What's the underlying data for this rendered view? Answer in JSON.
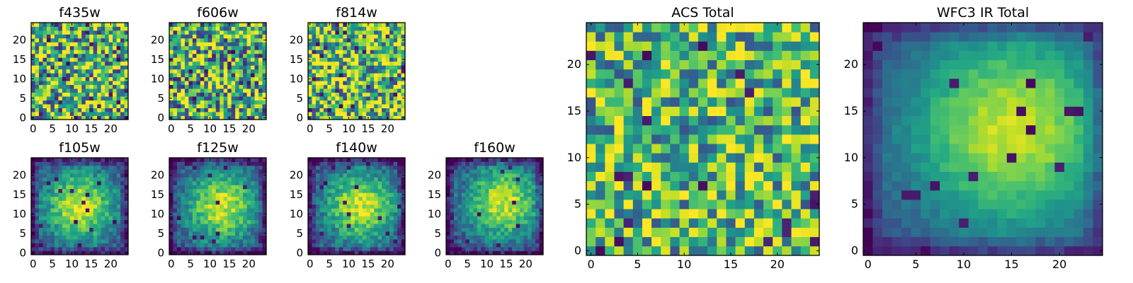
{
  "chart_data": [
    {
      "type": "heatmap",
      "id": "f435w",
      "title": "f435w",
      "grid": [
        25,
        25
      ],
      "pattern": "noise",
      "seed": 11,
      "base": 0.62,
      "contrast": 0.95,
      "xticks": [
        0,
        5,
        10,
        15,
        20
      ],
      "yticks": [
        0,
        5,
        10,
        15,
        20
      ],
      "colormap": "viridis"
    },
    {
      "type": "heatmap",
      "id": "f606w",
      "title": "f606w",
      "grid": [
        25,
        25
      ],
      "pattern": "noise",
      "seed": 23,
      "base": 0.6,
      "contrast": 0.95,
      "xticks": [
        0,
        5,
        10,
        15,
        20
      ],
      "yticks": [
        0,
        5,
        10,
        15,
        20
      ],
      "colormap": "viridis"
    },
    {
      "type": "heatmap",
      "id": "f814w",
      "title": "f814w",
      "grid": [
        25,
        25
      ],
      "pattern": "noise",
      "seed": 37,
      "base": 0.68,
      "contrast": 0.95,
      "xticks": [
        0,
        5,
        10,
        15,
        20
      ],
      "yticks": [
        0,
        5,
        10,
        15,
        20
      ],
      "colormap": "viridis"
    },
    {
      "type": "heatmap",
      "id": "f105w",
      "title": "f105w",
      "grid": [
        25,
        25
      ],
      "pattern": "blob",
      "seed": 41,
      "center": [
        12,
        12
      ],
      "width": 7,
      "xticks": [
        0,
        5,
        10,
        15,
        20
      ],
      "yticks": [
        0,
        5,
        10,
        15,
        20
      ],
      "colormap": "viridis"
    },
    {
      "type": "heatmap",
      "id": "f125w",
      "title": "f125w",
      "grid": [
        25,
        25
      ],
      "pattern": "blob",
      "seed": 53,
      "center": [
        13,
        12
      ],
      "width": 7,
      "xticks": [
        0,
        5,
        10,
        15,
        20
      ],
      "yticks": [
        0,
        5,
        10,
        15,
        20
      ],
      "colormap": "viridis"
    },
    {
      "type": "heatmap",
      "id": "f140w",
      "title": "f140w",
      "grid": [
        25,
        25
      ],
      "pattern": "blob",
      "seed": 67,
      "center": [
        13,
        12
      ],
      "width": 7,
      "xticks": [
        0,
        5,
        10,
        15,
        20
      ],
      "yticks": [
        0,
        5,
        10,
        15,
        20
      ],
      "colormap": "viridis"
    },
    {
      "type": "heatmap",
      "id": "f160w",
      "title": "f160w",
      "grid": [
        25,
        25
      ],
      "pattern": "blob",
      "seed": 79,
      "center": [
        14,
        13
      ],
      "width": 7,
      "xticks": [
        0,
        5,
        10,
        15,
        20
      ],
      "yticks": [
        0,
        5,
        10,
        15,
        20
      ],
      "colormap": "viridis"
    },
    {
      "type": "heatmap",
      "id": "acs-total",
      "title": "ACS Total",
      "grid": [
        25,
        25
      ],
      "pattern": "noise",
      "seed": 97,
      "base": 0.66,
      "contrast": 0.8,
      "xticks": [
        0,
        5,
        10,
        15,
        20
      ],
      "yticks": [
        0,
        5,
        10,
        15,
        20
      ],
      "colormap": "viridis"
    },
    {
      "type": "heatmap",
      "id": "wfc3-ir-total",
      "title": "WFC3 IR Total",
      "grid": [
        25,
        25
      ],
      "pattern": "smooth",
      "seed": 101,
      "center": [
        15,
        13
      ],
      "width": 8,
      "xticks": [
        0,
        5,
        10,
        15,
        20
      ],
      "yticks": [
        0,
        5,
        10,
        15,
        20
      ],
      "colormap": "viridis"
    }
  ]
}
